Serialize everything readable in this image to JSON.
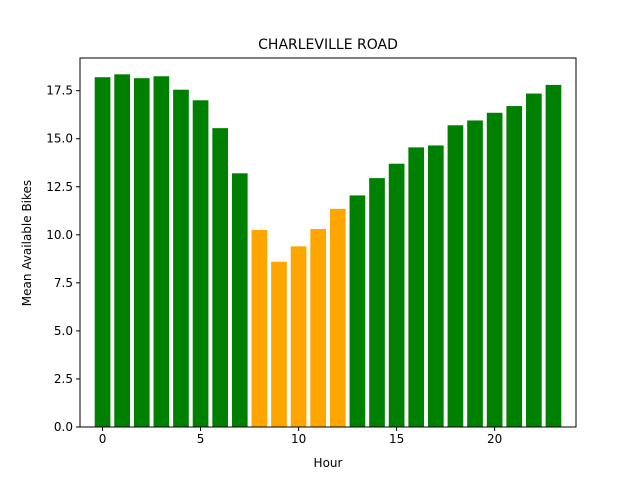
{
  "chart_data": {
    "type": "bar",
    "title": "CHARLEVILLE ROAD",
    "xlabel": "Hour",
    "ylabel": "Mean Available Bikes",
    "x": [
      0,
      1,
      2,
      3,
      4,
      5,
      6,
      7,
      8,
      9,
      10,
      11,
      12,
      13,
      14,
      15,
      16,
      17,
      18,
      19,
      20,
      21,
      22,
      23
    ],
    "values": [
      18.2,
      18.35,
      18.15,
      18.25,
      17.55,
      17.0,
      15.55,
      13.2,
      10.25,
      8.6,
      9.4,
      10.3,
      11.35,
      12.05,
      12.95,
      13.7,
      14.55,
      14.65,
      15.7,
      15.95,
      16.35,
      16.7,
      17.35,
      17.8
    ],
    "bar_colors": [
      "#008000",
      "#008000",
      "#008000",
      "#008000",
      "#008000",
      "#008000",
      "#008000",
      "#008000",
      "#ffa500",
      "#ffa500",
      "#ffa500",
      "#ffa500",
      "#ffa500",
      "#008000",
      "#008000",
      "#008000",
      "#008000",
      "#008000",
      "#008000",
      "#008000",
      "#008000",
      "#008000",
      "#008000",
      "#008000"
    ],
    "xlim": [
      -1.15,
      24.15
    ],
    "ylim": [
      0,
      19.2
    ],
    "xticks": [
      0,
      5,
      10,
      15,
      20
    ],
    "xtick_labels": [
      "0",
      "5",
      "10",
      "15",
      "20"
    ],
    "yticks": [
      0,
      2.5,
      5,
      7.5,
      10,
      12.5,
      15,
      17.5
    ],
    "ytick_labels": [
      "0.0",
      "2.5",
      "5.0",
      "7.5",
      "10.0",
      "12.5",
      "15.0",
      "17.5"
    ],
    "grid": false,
    "legend": "none"
  }
}
